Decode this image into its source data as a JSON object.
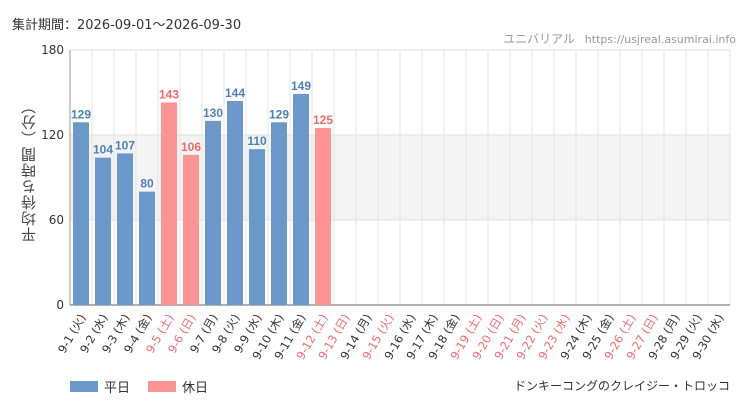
{
  "header": {
    "period": "集計期間：2026-09-01～2026-09-30",
    "source_name": "ユニバリアル",
    "source_url": "https://usjreal.asumirai.info"
  },
  "attraction": "ドンキーコングのクレイジー・トロッコ",
  "legend": [
    {
      "label": "平日",
      "color": "#6a98c9"
    },
    {
      "label": "休日",
      "color": "#fc9494"
    }
  ],
  "chart_data": {
    "type": "bar",
    "ylabel": "平均待ち時間（分）",
    "ylim": [
      0,
      180
    ],
    "yticks": [
      0,
      60,
      120,
      180
    ],
    "shaded_band": [
      60,
      120
    ],
    "grid": true,
    "legend_position": "bottom-left",
    "categories": [
      "9-1 (火)",
      "9-2 (水)",
      "9-3 (木)",
      "9-4 (金)",
      "9-5 (土)",
      "9-6 (日)",
      "9-7 (月)",
      "9-8 (火)",
      "9-9 (水)",
      "9-10 (木)",
      "9-11 (金)",
      "9-12 (土)",
      "9-13 (日)",
      "9-14 (月)",
      "9-15 (火)",
      "9-16 (水)",
      "9-17 (木)",
      "9-18 (金)",
      "9-19 (土)",
      "9-20 (日)",
      "9-21 (月)",
      "9-22 (火)",
      "9-23 (水)",
      "9-24 (木)",
      "9-25 (金)",
      "9-26 (土)",
      "9-27 (日)",
      "9-28 (月)",
      "9-29 (火)",
      "9-30 (水)"
    ],
    "day_type": [
      "weekday",
      "weekday",
      "weekday",
      "weekday",
      "holiday",
      "holiday",
      "weekday",
      "weekday",
      "weekday",
      "weekday",
      "weekday",
      "holiday",
      "holiday",
      "weekday",
      "holiday",
      "weekday",
      "weekday",
      "weekday",
      "holiday",
      "holiday",
      "holiday",
      "holiday",
      "holiday",
      "weekday",
      "weekday",
      "holiday",
      "holiday",
      "weekday",
      "weekday",
      "weekday"
    ],
    "values": [
      129,
      104,
      107,
      80,
      143,
      106,
      130,
      144,
      110,
      129,
      149,
      125,
      null,
      null,
      null,
      null,
      null,
      null,
      null,
      null,
      null,
      null,
      null,
      null,
      null,
      null,
      null,
      null,
      null,
      null
    ],
    "colors": {
      "weekday": "#6a98c9",
      "holiday": "#fc9494",
      "weekday_text": "#4f7fb5",
      "holiday_text": "#f06b6b",
      "axis_text": "#333333"
    }
  }
}
